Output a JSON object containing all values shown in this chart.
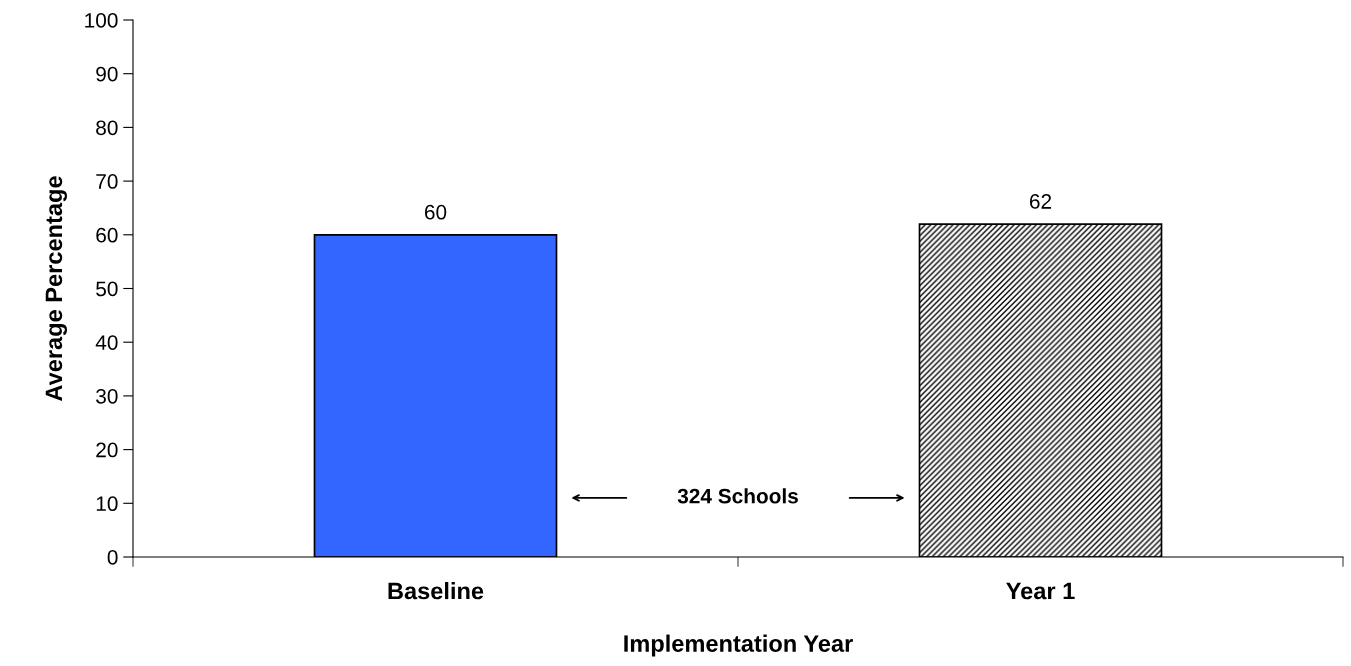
{
  "chart_data": {
    "type": "bar",
    "xlabel": "Implementation Year",
    "ylabel": "Average Percentage",
    "categories": [
      "Baseline",
      "Year 1"
    ],
    "values": [
      60,
      62
    ],
    "colors": [
      "#3366ff",
      "#000000"
    ],
    "ylim": [
      0,
      100
    ],
    "yticks": [
      0,
      10,
      20,
      30,
      40,
      50,
      60,
      70,
      80,
      90,
      100
    ],
    "data_labels": true,
    "grid": false,
    "legend": false,
    "annotations": [
      "324 Schools"
    ]
  }
}
